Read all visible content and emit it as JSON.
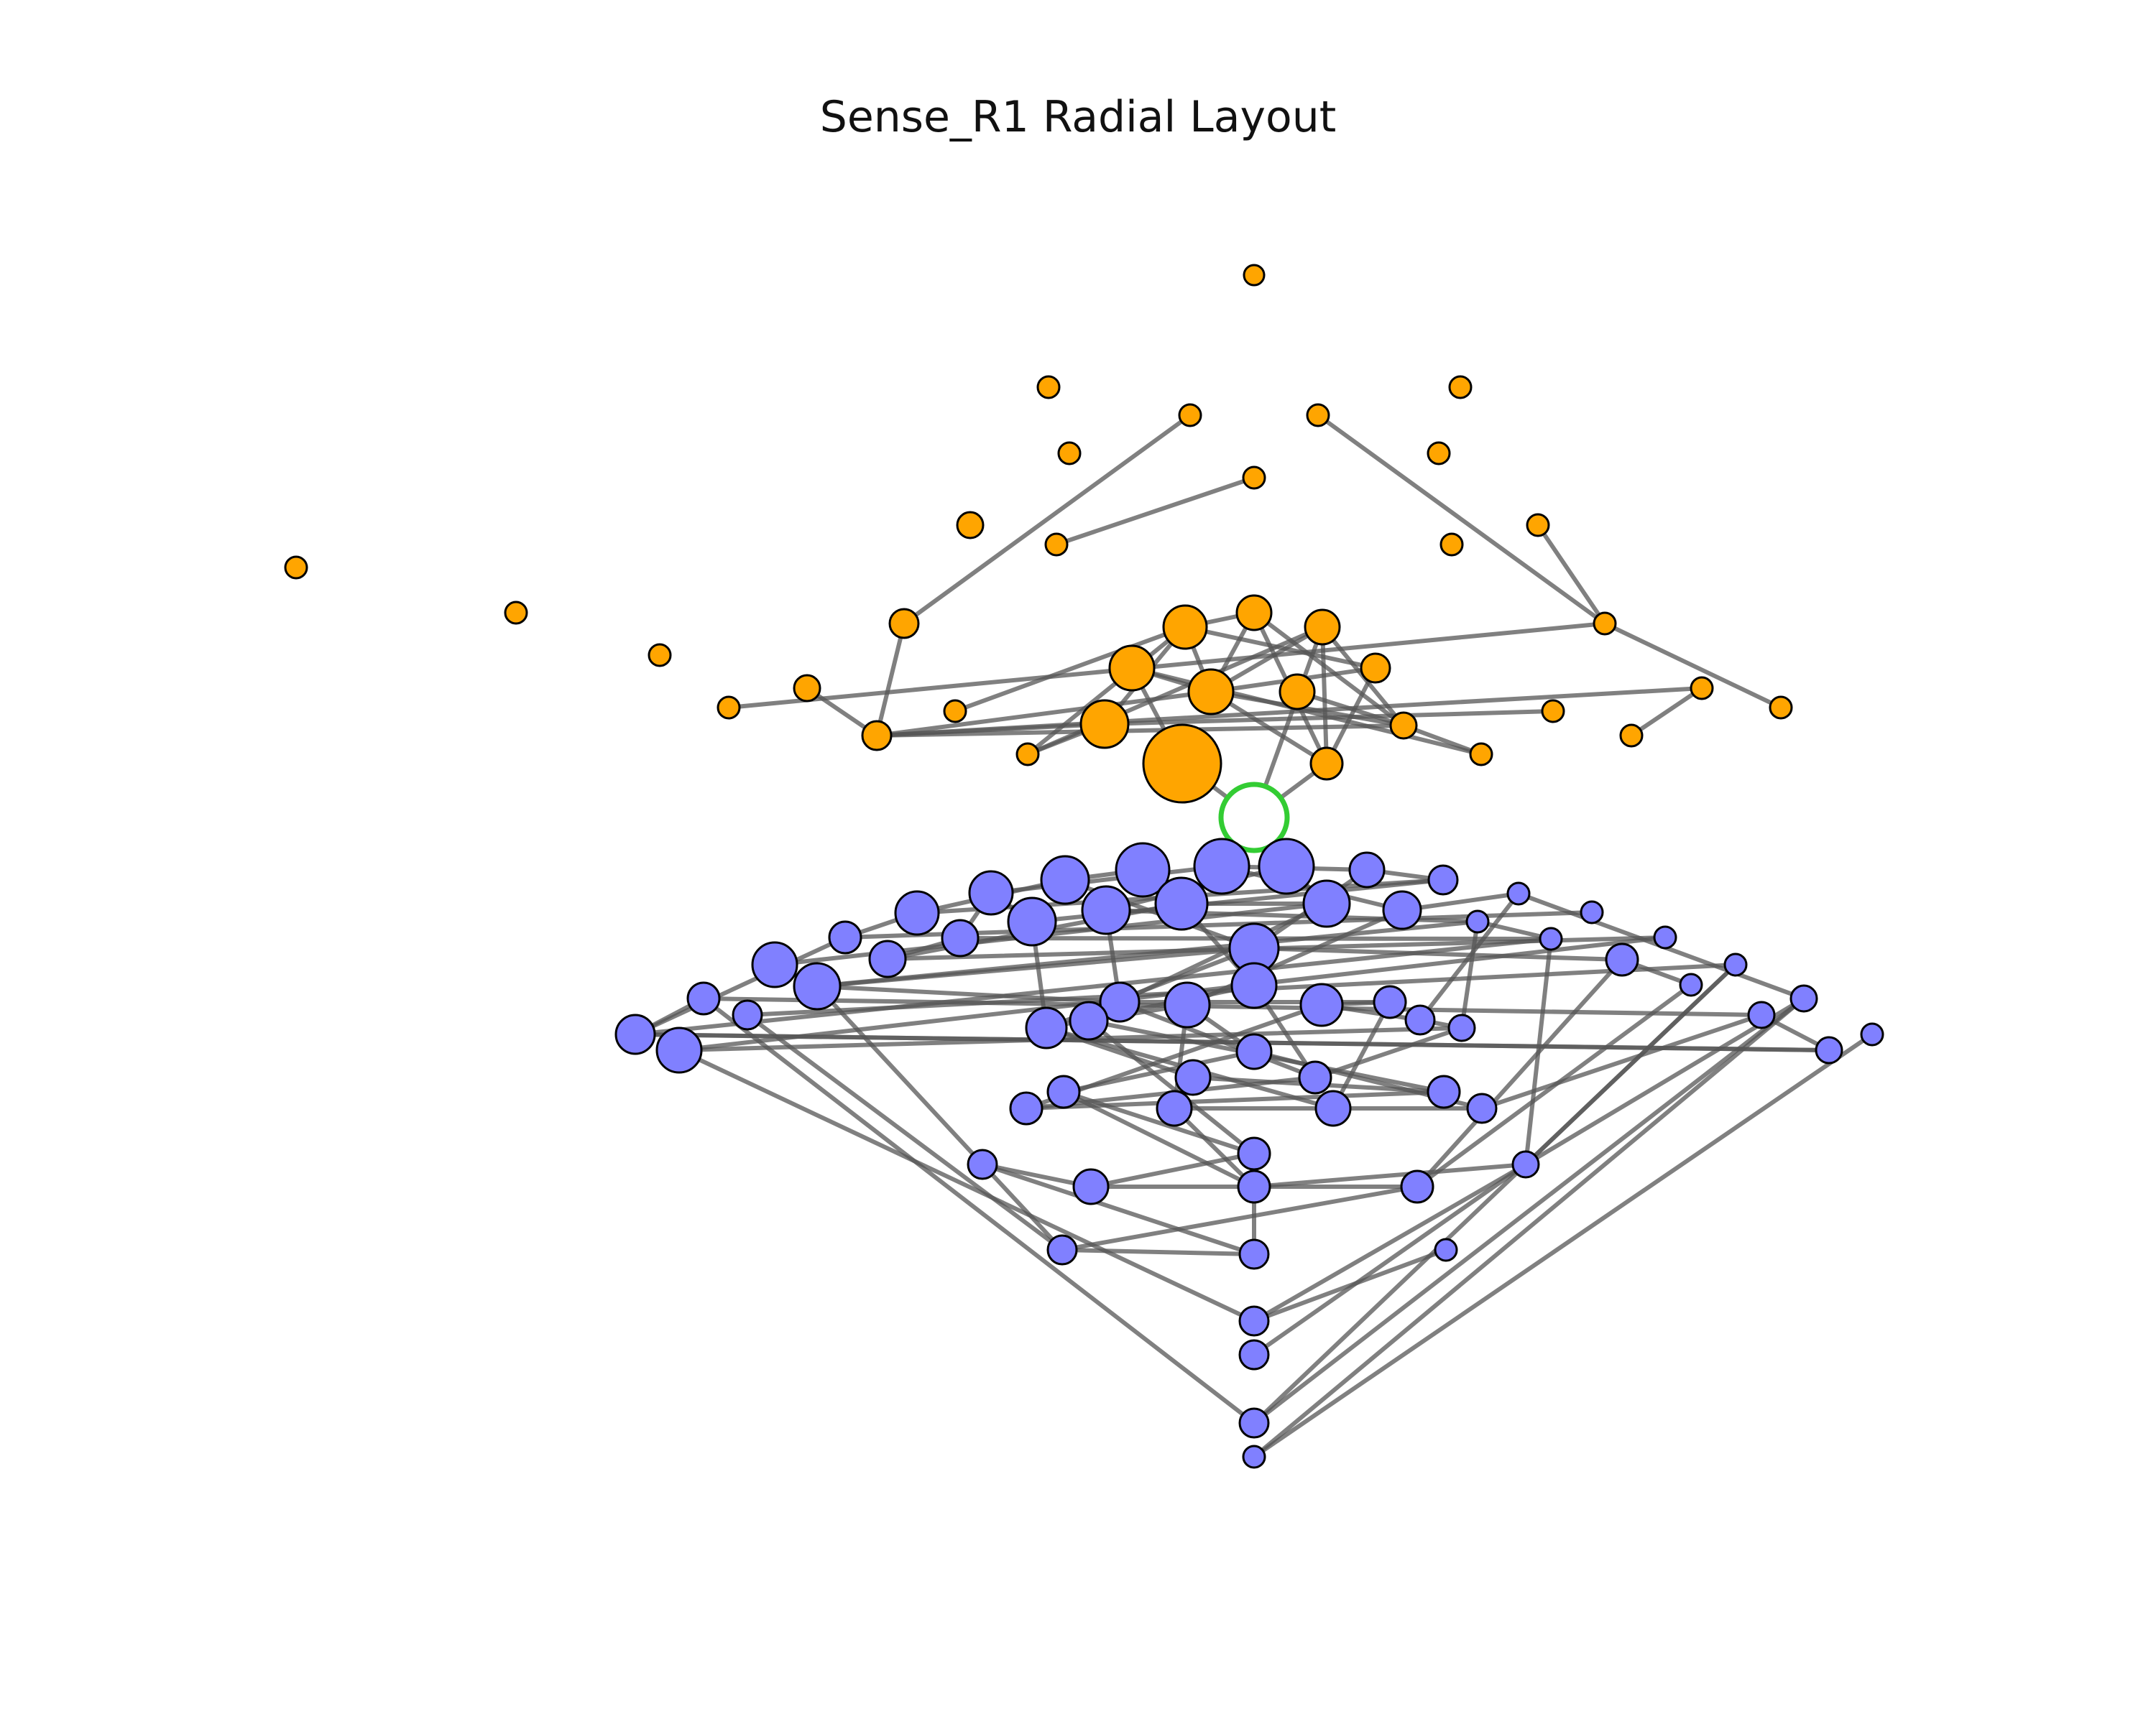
{
  "title": "Sense_R1 Radial Layout",
  "colors": {
    "background": "#ffffff",
    "upper_node_fill": "#FFA500",
    "lower_node_fill": "#8080FF",
    "center_node_outline": "#33CC33",
    "center_node_fill": "#ffffff",
    "node_outline": "#000000",
    "edge": "#555555"
  },
  "graph": {
    "center": "root",
    "upper_group": [
      "u_top",
      "u_l1",
      "u_r1",
      "u_l2",
      "u_r2",
      "u_l3",
      "u_r3",
      "u_c1",
      "u_l4",
      "u_l5",
      "u_r4",
      "u_r5",
      "u_far1",
      "u_far2",
      "u_far3",
      "u_l6",
      "u_l7",
      "u_l8",
      "u_l9",
      "u_hub3",
      "u_hub5",
      "u_hub6",
      "u_hub2",
      "u_hub4",
      "u_hub7",
      "u_hub1",
      "u_hub8",
      "u_r6",
      "u_r7",
      "u_r8",
      "u_r9",
      "u_r10",
      "u_r11",
      "u_r12",
      "u_r13"
    ],
    "lower_group_count": 73,
    "edge_count": 149
  }
}
